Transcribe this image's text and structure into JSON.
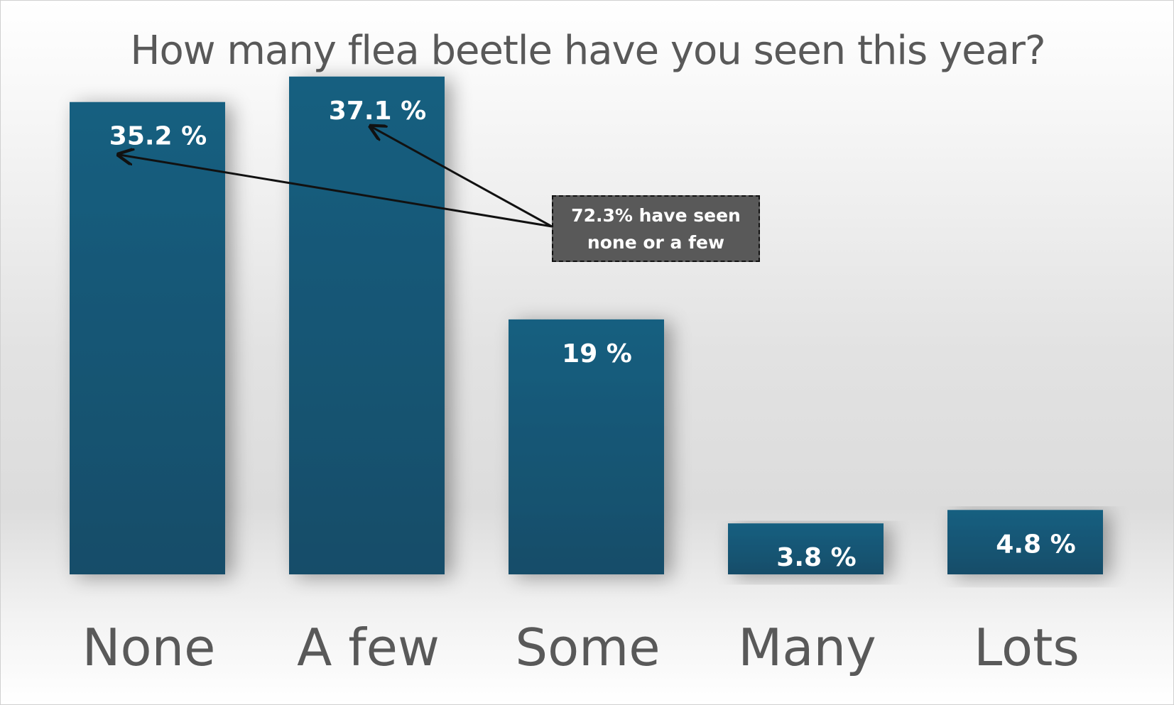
{
  "chart_data": {
    "type": "bar",
    "title": "How many flea beetle have you seen this year?",
    "categories": [
      "None",
      "A few",
      "Some",
      "Many",
      "Lots"
    ],
    "values": [
      35.2,
      37.1,
      19,
      3.8,
      4.8
    ],
    "data_labels": [
      "35.2 %",
      "37.1 %",
      "19 %",
      "3.8 %",
      "4.8 %"
    ],
    "ylim": [
      0,
      40
    ],
    "grid": false,
    "legend": "none",
    "bar_color": "#165b7b",
    "annotation": {
      "text_line1": "72.3% have seen",
      "text_line2": "none or a few",
      "points_to": [
        "None",
        "A few"
      ]
    }
  }
}
